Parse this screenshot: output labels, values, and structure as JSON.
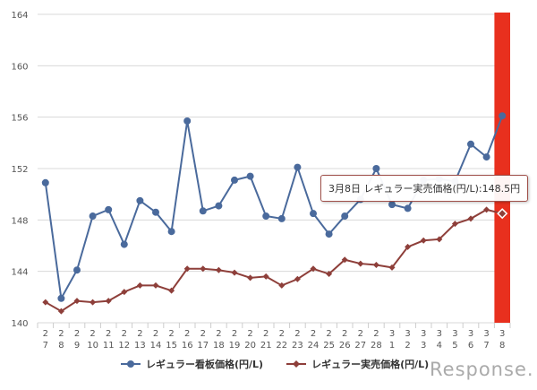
{
  "chart_data": {
    "type": "line",
    "title": "",
    "xlabel": "",
    "ylabel": "",
    "ylim": [
      140,
      164
    ],
    "yticks": [
      140,
      144,
      148,
      152,
      156,
      160,
      164
    ],
    "grid": true,
    "legend_position": "bottom",
    "categories": [
      [
        "2",
        "7"
      ],
      [
        "2",
        "8"
      ],
      [
        "2",
        "9"
      ],
      [
        "2",
        "10"
      ],
      [
        "2",
        "11"
      ],
      [
        "2",
        "12"
      ],
      [
        "2",
        "13"
      ],
      [
        "2",
        "14"
      ],
      [
        "2",
        "15"
      ],
      [
        "2",
        "16"
      ],
      [
        "2",
        "17"
      ],
      [
        "2",
        "18"
      ],
      [
        "2",
        "19"
      ],
      [
        "2",
        "20"
      ],
      [
        "2",
        "21"
      ],
      [
        "2",
        "22"
      ],
      [
        "2",
        "23"
      ],
      [
        "2",
        "24"
      ],
      [
        "2",
        "25"
      ],
      [
        "2",
        "26"
      ],
      [
        "2",
        "27"
      ],
      [
        "2",
        "28"
      ],
      [
        "3",
        "1"
      ],
      [
        "3",
        "2"
      ],
      [
        "3",
        "3"
      ],
      [
        "3",
        "4"
      ],
      [
        "3",
        "5"
      ],
      [
        "3",
        "6"
      ],
      [
        "3",
        "7"
      ],
      [
        "3",
        "8"
      ]
    ],
    "series": [
      {
        "name": "レギュラー看板価格(円/L)",
        "color": "#4a6a9c",
        "marker": "circle",
        "values": [
          150.9,
          141.9,
          144.1,
          148.3,
          148.8,
          146.1,
          149.5,
          148.6,
          147.1,
          155.7,
          148.7,
          149.1,
          151.1,
          151.4,
          148.3,
          148.1,
          152.1,
          148.5,
          146.9,
          148.3,
          149.6,
          152.0,
          149.2,
          148.9,
          151.1,
          151.2,
          151.0,
          153.9,
          152.9,
          156.1
        ]
      },
      {
        "name": "レギュラー実売価格(円/L)",
        "color": "#8e3f3a",
        "marker": "diamond",
        "values": [
          141.6,
          140.9,
          141.7,
          141.6,
          141.7,
          142.4,
          142.9,
          142.9,
          142.5,
          144.2,
          144.2,
          144.1,
          143.9,
          143.5,
          143.6,
          142.9,
          143.4,
          144.2,
          143.8,
          144.9,
          144.6,
          144.5,
          144.3,
          145.9,
          146.4,
          146.5,
          147.7,
          148.1,
          148.8,
          148.5
        ]
      }
    ],
    "highlight": {
      "index": 29,
      "color": "#e8301e"
    },
    "tooltip": "3月8日 レギュラー実売価格(円/L):148.5円"
  },
  "logo": "Response."
}
